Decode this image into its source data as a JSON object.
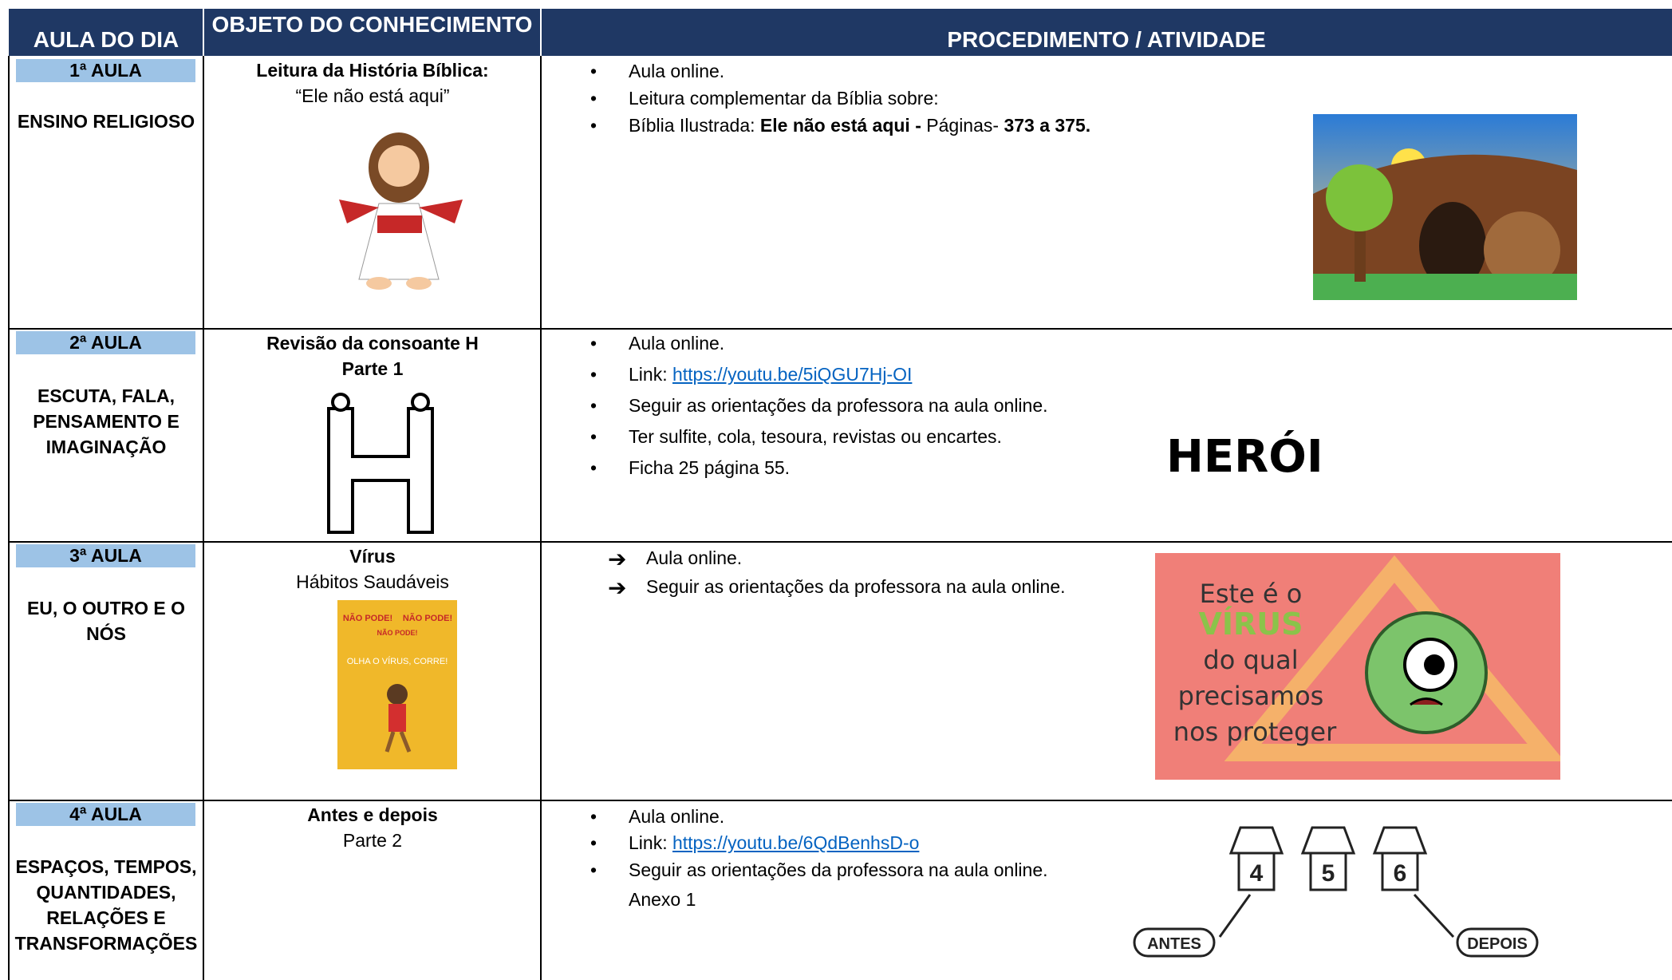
{
  "header": {
    "aula": "AULA DO DIA",
    "objeto": "OBJETO DO CONHECIMENTO",
    "procedimento": "PROCEDIMENTO / ATIVIDADE"
  },
  "rows": [
    {
      "aula": "1ª AULA",
      "area": "ENSINO RELIGIOSO",
      "objeto_title": "Leitura da História Bíblica:",
      "objeto_sub": "“Ele não está aqui”",
      "items": [
        [
          {
            "text": "Aula online."
          }
        ],
        [
          {
            "text": "Leitura complementar da Bíblia sobre:"
          }
        ],
        [
          {
            "text": "Bíblia Ilustrada: "
          },
          {
            "text": "Ele não está aqui - ",
            "bold": true
          },
          {
            "text": "Páginas- "
          },
          {
            "text": "373 a 375.",
            "bold": true
          }
        ]
      ]
    },
    {
      "aula": "2ª AULA",
      "area": [
        "ESCUTA, FALA,",
        "PENSAMENTO E",
        "IMAGINAÇÃO"
      ],
      "objeto_title": "Revisão da consoante H",
      "objeto_sub": "Parte 1",
      "items": [
        [
          {
            "text": "Aula online."
          }
        ],
        [
          {
            "text": "Link: "
          },
          {
            "text": "https://youtu.be/5iQGU7Hj-OI",
            "link": true
          }
        ],
        [
          {
            "text": "Seguir as orientações da professora na aula online."
          }
        ],
        [
          {
            "text": "Ter sulfite, cola, tesoura, revistas ou encartes."
          }
        ],
        [
          {
            "text": "Ficha 25 página 55."
          }
        ]
      ],
      "image_text": "HERÓI"
    },
    {
      "aula": "3ª AULA",
      "area": [
        "EU, O OUTRO E O",
        "NÓS"
      ],
      "objeto_title": "Vírus",
      "objeto_sub": "Hábitos Saudáveis",
      "items": [
        [
          {
            "text": "Aula online."
          }
        ],
        [
          {
            "text": "Seguir as orientações da professora na aula online."
          }
        ]
      ],
      "book_text": [
        "NÃO PODE!",
        "NÃO PODE!",
        "NÃO PODE!",
        "OLHA O VÍRUS, CORRE!"
      ],
      "image_text": [
        "Este é o",
        "VÍRUS",
        "do qual",
        "precisamos",
        "nos proteger"
      ]
    },
    {
      "aula": "4ª AULA",
      "area": [
        "ESPAÇOS, TEMPOS,",
        "QUANTIDADES,",
        "RELAÇÕES E",
        "TRANSFORMAÇÕES"
      ],
      "objeto_title": "Antes e depois",
      "objeto_sub": "Parte 2",
      "items": [
        [
          {
            "text": "Aula online."
          }
        ],
        [
          {
            "text": "Link: "
          },
          {
            "text": "https://youtu.be/6QdBenhsD-o",
            "link": true
          }
        ],
        [
          {
            "text": "Seguir as orientações da professora na aula online."
          }
        ],
        [
          {
            "text": "Anexo 1"
          }
        ]
      ],
      "image_text": [
        "4",
        "5",
        "6",
        "ANTES",
        "DEPOIS"
      ]
    }
  ]
}
